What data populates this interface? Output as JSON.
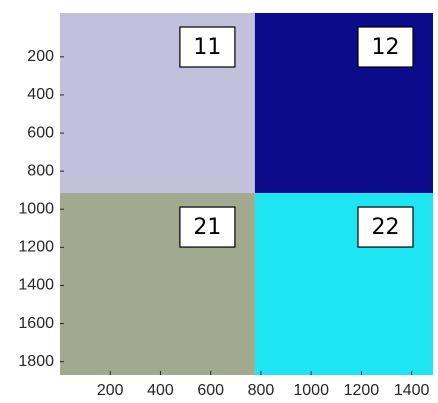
{
  "chart_data": {
    "type": "image",
    "xlim": [
      0,
      1485
    ],
    "ylim": [
      -30,
      1870
    ],
    "y_inverted": true,
    "xticks": [
      200,
      400,
      600,
      800,
      1000,
      1200,
      1400
    ],
    "yticks": [
      200,
      400,
      600,
      800,
      1000,
      1200,
      1400,
      1600,
      1800
    ],
    "x_split": 776,
    "y_split": 915,
    "cells": [
      {
        "label": "11",
        "color": "#c3c0dc"
      },
      {
        "label": "12",
        "color": "#0b0b8c"
      },
      {
        "label": "21",
        "color": "#a2a98f"
      },
      {
        "label": "22",
        "color": "#1de6f2"
      }
    ]
  }
}
